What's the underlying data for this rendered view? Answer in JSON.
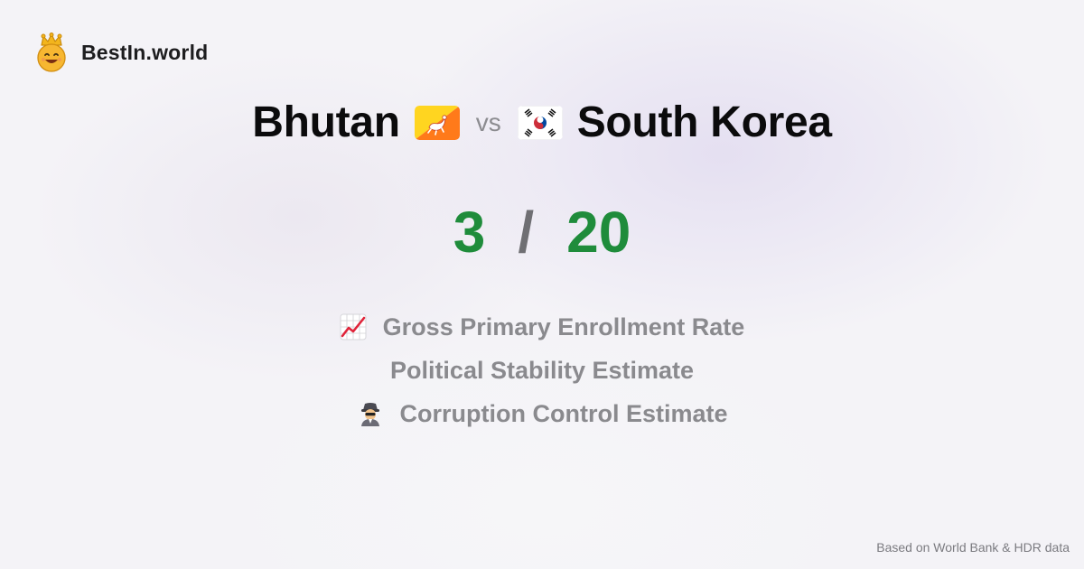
{
  "brand": {
    "name": "BestIn.world",
    "logo_icon": "crown-smiley-icon"
  },
  "comparison": {
    "country_a": {
      "name": "Bhutan",
      "flag_icon": "bhutan-flag-icon"
    },
    "vs_label": "vs",
    "country_b": {
      "name": "South Korea",
      "flag_icon": "south-korea-flag-icon"
    }
  },
  "scores": {
    "a": "3",
    "separator": "/",
    "b": "20",
    "color": "#1f8c3b"
  },
  "metrics": [
    {
      "icon": "chart-increasing-icon",
      "label": "Gross Primary Enrollment Rate"
    },
    {
      "icon": "",
      "label": "Political Stability Estimate"
    },
    {
      "icon": "detective-icon",
      "label": "Corruption Control Estimate"
    }
  ],
  "footer": {
    "source": "Based on World Bank & HDR data"
  }
}
